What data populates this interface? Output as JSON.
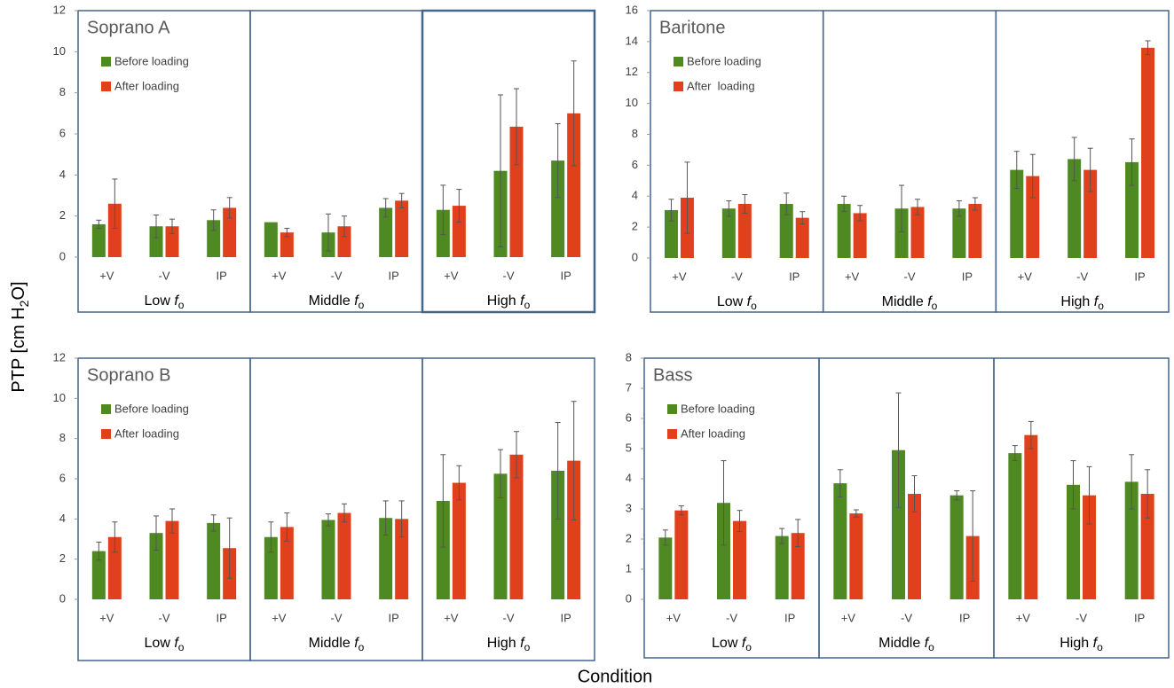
{
  "y_label": {
    "before": "PTP [cm H",
    "sub": "2",
    "after": "O]"
  },
  "x_label": "Condition",
  "chart_data": [
    {
      "type": "bar",
      "title": "Soprano A",
      "legend": "upper left",
      "categories": [
        "+V",
        "-V",
        "IP",
        "+V",
        "-V",
        "IP",
        "+V",
        "-V",
        "IP"
      ],
      "groups": [
        {
          "text": "Low",
          "symbol": "f",
          "subscript": "o"
        },
        {
          "text": "Middle",
          "symbol": "f",
          "subscript": "o"
        },
        {
          "text": "High",
          "symbol": "f",
          "subscript": "o"
        }
      ],
      "series": [
        {
          "name": "Before loading",
          "color": "#4e8a21",
          "values": [
            1.6,
            1.5,
            1.8,
            1.7,
            1.2,
            2.4,
            2.3,
            4.2,
            4.7
          ],
          "errors": [
            0.2,
            0.55,
            0.5,
            0,
            0.9,
            0.45,
            1.2,
            3.7,
            1.8
          ]
        },
        {
          "name": "After loading",
          "color": "#e0401c",
          "values": [
            2.6,
            1.5,
            2.4,
            1.2,
            1.5,
            2.75,
            2.5,
            6.35,
            7.0
          ],
          "errors": [
            1.2,
            0.35,
            0.5,
            0.2,
            0.5,
            0.35,
            0.8,
            1.85,
            2.55
          ]
        }
      ],
      "ylim": [
        0,
        12
      ],
      "yticks": [
        0,
        2,
        4,
        6,
        8,
        10,
        12
      ]
    },
    {
      "type": "bar",
      "title": "Baritone",
      "legend": "upper left",
      "categories": [
        "+V",
        "-V",
        "IP",
        "+V",
        "-V",
        "IP",
        "+V",
        "-V",
        "IP"
      ],
      "groups": [
        {
          "text": "Low",
          "symbol": "f",
          "subscript": "o"
        },
        {
          "text": "Middle",
          "symbol": "f",
          "subscript": "o"
        },
        {
          "text": "High",
          "symbol": "f",
          "subscript": "o"
        }
      ],
      "series": [
        {
          "name": "Before loading",
          "color": "#4e8a21",
          "values": [
            3.1,
            3.2,
            3.5,
            3.5,
            3.2,
            3.2,
            5.7,
            6.4,
            6.2
          ],
          "errors": [
            0.7,
            0.5,
            0.7,
            0.5,
            1.5,
            0.5,
            1.2,
            1.4,
            1.5
          ]
        },
        {
          "name": "After  loading",
          "color": "#e0401c",
          "values": [
            3.9,
            3.5,
            2.6,
            2.9,
            3.3,
            3.5,
            5.3,
            5.7,
            13.6
          ],
          "errors": [
            2.3,
            0.6,
            0.4,
            0.5,
            0.5,
            0.4,
            1.4,
            1.4,
            0.45
          ]
        }
      ],
      "ylim": [
        0,
        16
      ],
      "yticks": [
        0,
        2,
        4,
        6,
        8,
        10,
        12,
        14,
        16
      ]
    },
    {
      "type": "bar",
      "title": "Soprano B",
      "legend": "upper left",
      "categories": [
        "+V",
        "-V",
        "IP",
        "+V",
        "-V",
        "IP",
        "+V",
        "-V",
        "IP"
      ],
      "groups": [
        {
          "text": "Low",
          "symbol": "f",
          "subscript": "o"
        },
        {
          "text": "Middle",
          "symbol": "f",
          "subscript": "o"
        },
        {
          "text": "High",
          "symbol": "f",
          "subscript": "o"
        }
      ],
      "series": [
        {
          "name": "Before loading",
          "color": "#4e8a21",
          "values": [
            2.4,
            3.3,
            3.8,
            3.1,
            3.95,
            4.05,
            4.9,
            6.25,
            6.4
          ],
          "errors": [
            0.45,
            0.85,
            0.4,
            0.75,
            0.3,
            0.85,
            2.3,
            1.2,
            2.4
          ]
        },
        {
          "name": "After loading",
          "color": "#e0401c",
          "values": [
            3.1,
            3.9,
            2.55,
            3.6,
            4.3,
            4.0,
            5.8,
            7.2,
            6.9
          ],
          "errors": [
            0.75,
            0.6,
            1.5,
            0.7,
            0.45,
            0.9,
            0.85,
            1.15,
            2.95
          ]
        }
      ],
      "ylim": [
        0,
        12
      ],
      "yticks": [
        0,
        2,
        4,
        6,
        8,
        10,
        12
      ]
    },
    {
      "type": "bar",
      "title": "Bass",
      "legend": "upper left",
      "categories": [
        "+V",
        "-V",
        "IP",
        "+V",
        "-V",
        "IP",
        "+V",
        "-V",
        "IP"
      ],
      "groups": [
        {
          "text": "Low",
          "symbol": "f",
          "subscript": "o"
        },
        {
          "text": "Middle",
          "symbol": "f",
          "subscript": "o"
        },
        {
          "text": "High",
          "symbol": "f",
          "subscript": "o"
        }
      ],
      "series": [
        {
          "name": "Before loading",
          "color": "#4e8a21",
          "values": [
            2.05,
            3.2,
            2.1,
            3.85,
            4.95,
            3.45,
            4.85,
            3.8,
            3.9
          ],
          "errors": [
            0.25,
            1.4,
            0.25,
            0.45,
            1.9,
            0.15,
            0.25,
            0.8,
            0.9
          ]
        },
        {
          "name": "After loading",
          "color": "#e0401c",
          "values": [
            2.95,
            2.6,
            2.2,
            2.85,
            3.5,
            2.1,
            5.45,
            3.45,
            3.5
          ],
          "errors": [
            0.15,
            0.35,
            0.45,
            0.12,
            0.6,
            1.5,
            0.45,
            0.95,
            0.8
          ]
        }
      ],
      "ylim": [
        0,
        8
      ],
      "yticks": [
        0,
        1,
        2,
        3,
        4,
        5,
        6,
        7,
        8
      ]
    }
  ]
}
